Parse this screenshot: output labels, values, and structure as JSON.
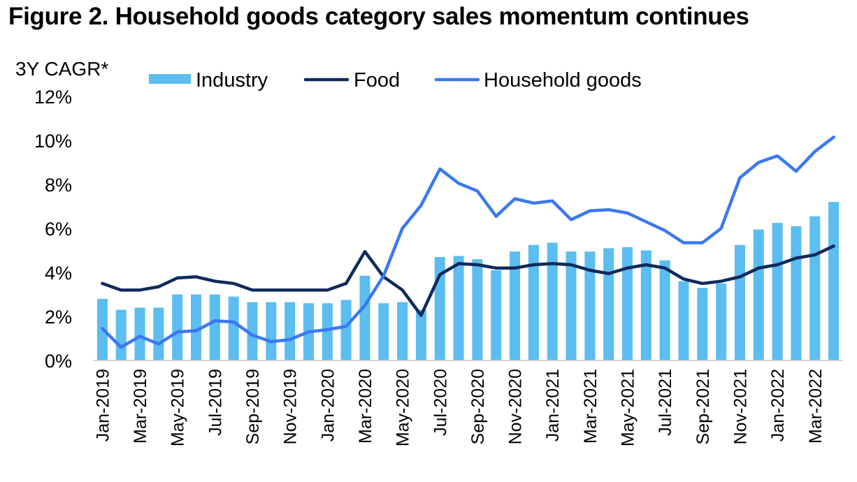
{
  "title": "Figure 2. Household goods category sales momentum continues",
  "chart_data": {
    "type": "bar",
    "ylabel": "3Y CAGR*",
    "ylim": [
      0,
      12
    ],
    "ytick_labels": [
      "0%",
      "2%",
      "4%",
      "6%",
      "8%",
      "10%",
      "12%"
    ],
    "grid": false,
    "legend_position": "top",
    "categories": [
      "Jan-2019",
      "Feb-2019",
      "Mar-2019",
      "Apr-2019",
      "May-2019",
      "Jun-2019",
      "Jul-2019",
      "Aug-2019",
      "Sep-2019",
      "Oct-2019",
      "Nov-2019",
      "Dec-2019",
      "Jan-2020",
      "Feb-2020",
      "Mar-2020",
      "Apr-2020",
      "May-2020",
      "Jun-2020",
      "Jul-2020",
      "Aug-2020",
      "Sep-2020",
      "Oct-2020",
      "Nov-2020",
      "Dec-2020",
      "Jan-2021",
      "Feb-2021",
      "Mar-2021",
      "Apr-2021",
      "May-2021",
      "Jun-2021",
      "Jul-2021",
      "Aug-2021",
      "Sep-2021",
      "Oct-2021",
      "Nov-2021",
      "Dec-2021",
      "Jan-2022",
      "Feb-2022",
      "Mar-2022",
      "Apr-2022"
    ],
    "xtick_labels": [
      "Jan-2019",
      "",
      "Mar-2019",
      "",
      "May-2019",
      "",
      "Jul-2019",
      "",
      "Sep-2019",
      "",
      "Nov-2019",
      "",
      "Jan-2020",
      "",
      "Mar-2020",
      "",
      "May-2020",
      "",
      "Jul-2020",
      "",
      "Sep-2020",
      "",
      "Nov-2020",
      "",
      "Jan-2021",
      "",
      "Mar-2021",
      "",
      "May-2021",
      "",
      "Jul-2021",
      "",
      "Sep-2021",
      "",
      "Nov-2021",
      "",
      "Jan-2022",
      "",
      "Mar-2022",
      ""
    ],
    "series": [
      {
        "name": "Industry",
        "type": "bar",
        "color": "#5bbdf0",
        "values": [
          2.8,
          2.3,
          2.4,
          2.4,
          3.0,
          3.0,
          3.0,
          2.9,
          2.65,
          2.65,
          2.65,
          2.6,
          2.6,
          2.75,
          3.85,
          2.6,
          2.65,
          2.3,
          4.7,
          4.75,
          4.6,
          4.1,
          4.95,
          5.25,
          5.35,
          4.95,
          4.95,
          5.1,
          5.15,
          5.0,
          4.55,
          3.6,
          3.3,
          3.5,
          5.25,
          5.95,
          6.25,
          6.1,
          6.55,
          7.2
        ]
      },
      {
        "name": "Food",
        "type": "line",
        "color": "#0f2a5c",
        "values": [
          3.5,
          3.2,
          3.2,
          3.35,
          3.75,
          3.8,
          3.6,
          3.5,
          3.2,
          3.2,
          3.2,
          3.2,
          3.2,
          3.5,
          4.95,
          3.8,
          3.2,
          2.05,
          3.9,
          4.4,
          4.35,
          4.2,
          4.2,
          4.35,
          4.4,
          4.35,
          4.1,
          3.95,
          4.2,
          4.35,
          4.2,
          3.7,
          3.5,
          3.6,
          3.8,
          4.2,
          4.35,
          4.65,
          4.8,
          5.2
        ]
      },
      {
        "name": "Household goods",
        "type": "line",
        "color": "#3b78f2",
        "values": [
          1.45,
          0.6,
          1.1,
          0.75,
          1.3,
          1.35,
          1.8,
          1.75,
          1.15,
          0.85,
          0.95,
          1.3,
          1.4,
          1.55,
          2.5,
          3.85,
          6.0,
          7.05,
          8.7,
          8.05,
          7.7,
          6.55,
          7.35,
          7.15,
          7.25,
          6.4,
          6.8,
          6.85,
          6.7,
          6.3,
          5.9,
          5.35,
          5.35,
          6.0,
          8.3,
          9.0,
          9.3,
          8.6,
          9.5,
          10.15
        ]
      }
    ]
  }
}
